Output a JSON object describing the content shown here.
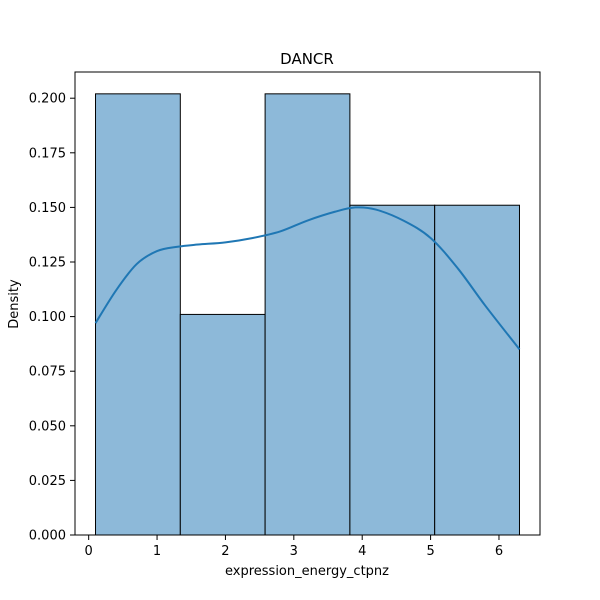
{
  "chart_data": {
    "type": "bar",
    "title": "DANCR",
    "xlabel": "expression_energy_ctpnz",
    "ylabel": "Density",
    "xlim": [
      -0.2,
      6.6
    ],
    "ylim": [
      0,
      0.212
    ],
    "xticks": [
      0,
      1,
      2,
      3,
      4,
      5,
      6
    ],
    "xtick_labels": [
      "0",
      "1",
      "2",
      "3",
      "4",
      "5",
      "6"
    ],
    "yticks": [
      0,
      0.025,
      0.05,
      0.075,
      0.1,
      0.125,
      0.15,
      0.175,
      0.2
    ],
    "ytick_labels": [
      "0.000",
      "0.025",
      "0.050",
      "0.075",
      "0.100",
      "0.125",
      "0.150",
      "0.175",
      "0.200"
    ],
    "bins": [
      {
        "x0": 0.1,
        "x1": 1.34,
        "density": 0.202
      },
      {
        "x0": 1.34,
        "x1": 2.58,
        "density": 0.101
      },
      {
        "x0": 2.58,
        "x1": 3.82,
        "density": 0.202
      },
      {
        "x0": 3.82,
        "x1": 5.06,
        "density": 0.151
      },
      {
        "x0": 5.06,
        "x1": 6.3,
        "density": 0.151
      }
    ],
    "kde": {
      "x": [
        0.1,
        0.4,
        0.7,
        1.0,
        1.3,
        1.6,
        2.0,
        2.4,
        2.8,
        3.2,
        3.6,
        3.9,
        4.2,
        4.6,
        5.0,
        5.4,
        5.8,
        6.3
      ],
      "y": [
        0.097,
        0.112,
        0.124,
        0.13,
        0.132,
        0.133,
        0.134,
        0.136,
        0.139,
        0.144,
        0.148,
        0.15,
        0.149,
        0.144,
        0.136,
        0.122,
        0.105,
        0.085
      ]
    },
    "grid": false,
    "colors": {
      "bar_fill": "#8db9d9",
      "bar_edge": "#000000",
      "kde_line": "#1f77b4"
    }
  }
}
